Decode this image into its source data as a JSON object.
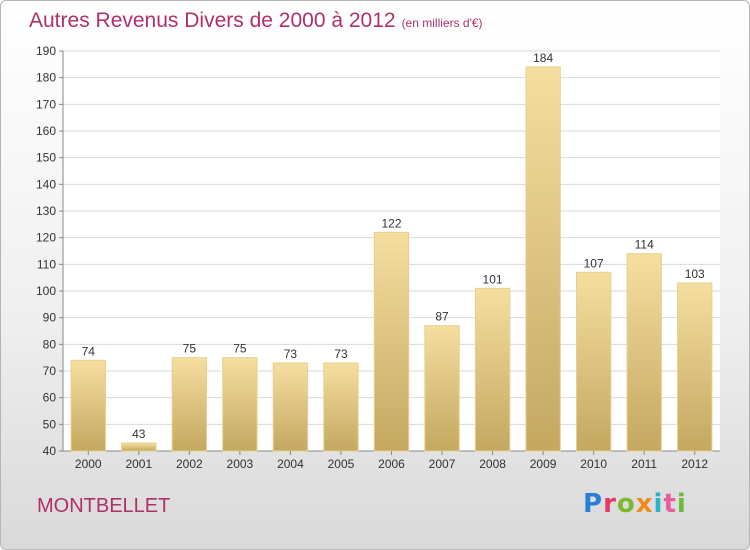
{
  "title": "Autres Revenus Divers de 2000 à 2012",
  "title_unit": "(en milliers d'€)",
  "commune": "MONTBELLET",
  "logo": {
    "letters": [
      "P",
      "r",
      "o",
      "x",
      "i",
      "t",
      "i"
    ]
  },
  "colors": {
    "title": "#b0306a",
    "bar_light": "#f5dea0",
    "bar_dark": "#c4a860",
    "grid": "#dadada"
  },
  "chart_data": {
    "type": "bar",
    "title": "Autres Revenus Divers de 2000 à 2012",
    "categories": [
      "2000",
      "2001",
      "2002",
      "2003",
      "2004",
      "2005",
      "2006",
      "2007",
      "2008",
      "2009",
      "2010",
      "2011",
      "2012"
    ],
    "values": [
      74,
      43,
      75,
      75,
      73,
      73,
      122,
      87,
      101,
      184,
      107,
      114,
      103
    ],
    "ylim": [
      40,
      190
    ],
    "yticks": [
      40,
      50,
      60,
      70,
      80,
      90,
      100,
      110,
      120,
      130,
      140,
      150,
      160,
      170,
      180,
      190
    ],
    "xlabel": "",
    "ylabel": "",
    "grid": true,
    "data_labels": true
  }
}
